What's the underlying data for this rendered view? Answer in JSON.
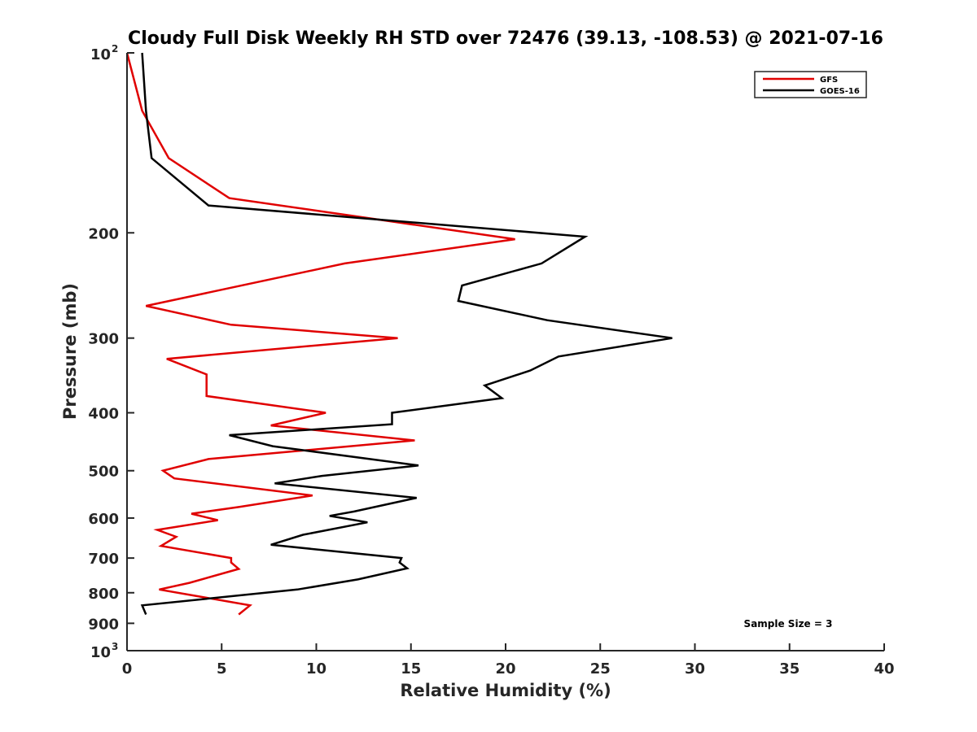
{
  "chart_data": {
    "type": "line",
    "title": "Cloudy Full Disk Weekly RH STD over 72476 (39.13, -108.53) @ 2021-07-16",
    "xlabel": "Relative Humidity (%)",
    "ylabel": "Pressure (mb)",
    "xlim": [
      0,
      40
    ],
    "ylim": [
      100,
      1000
    ],
    "y_scale": "log",
    "y_reversed": true,
    "grid": false,
    "legend_position": "top-right",
    "x_ticks": [
      "0",
      "5",
      "10",
      "15",
      "20",
      "25",
      "30",
      "35",
      "40"
    ],
    "y_ticks": [
      {
        "base": "10",
        "exp": "2",
        "value": 100
      },
      {
        "label": "200",
        "value": 200
      },
      {
        "label": "300",
        "value": 300
      },
      {
        "label": "400",
        "value": 400
      },
      {
        "label": "500",
        "value": 500
      },
      {
        "label": "600",
        "value": 600
      },
      {
        "label": "700",
        "value": 700
      },
      {
        "label": "800",
        "value": 800
      },
      {
        "label": "900",
        "value": 900
      },
      {
        "base": "10",
        "exp": "3",
        "value": 1000
      }
    ],
    "annotation": "Sample Size = 3",
    "series": [
      {
        "name": "GFS",
        "color": "#e00000",
        "points": [
          [
            0.0,
            100
          ],
          [
            0.8,
            125
          ],
          [
            2.2,
            150
          ],
          [
            5.4,
            175
          ],
          [
            20.5,
            205
          ],
          [
            11.5,
            225
          ],
          [
            1.0,
            265
          ],
          [
            5.5,
            285
          ],
          [
            14.3,
            300
          ],
          [
            2.1,
            325
          ],
          [
            4.2,
            345
          ],
          [
            4.2,
            375
          ],
          [
            10.5,
            400
          ],
          [
            7.6,
            420
          ],
          [
            15.2,
            445
          ],
          [
            4.3,
            478
          ],
          [
            1.9,
            500
          ],
          [
            2.5,
            515
          ],
          [
            9.8,
            550
          ],
          [
            5.9,
            575
          ],
          [
            3.4,
            590
          ],
          [
            4.8,
            605
          ],
          [
            1.6,
            628
          ],
          [
            2.6,
            645
          ],
          [
            1.8,
            668
          ],
          [
            5.5,
            700
          ],
          [
            5.5,
            712
          ],
          [
            5.9,
            730
          ],
          [
            3.3,
            770
          ],
          [
            1.7,
            790
          ],
          [
            6.5,
            840
          ],
          [
            5.9,
            870
          ]
        ]
      },
      {
        "name": "GOES-16",
        "color": "#000000",
        "points": [
          [
            0.8,
            100
          ],
          [
            1.0,
            125
          ],
          [
            1.3,
            150
          ],
          [
            4.3,
            180
          ],
          [
            24.2,
            203
          ],
          [
            21.9,
            225
          ],
          [
            17.7,
            245
          ],
          [
            17.5,
            260
          ],
          [
            22.2,
            280
          ],
          [
            28.8,
            300
          ],
          [
            22.8,
            322
          ],
          [
            21.3,
            340
          ],
          [
            18.9,
            360
          ],
          [
            19.8,
            378
          ],
          [
            14.0,
            400
          ],
          [
            14.0,
            418
          ],
          [
            5.4,
            436
          ],
          [
            7.7,
            455
          ],
          [
            15.4,
            490
          ],
          [
            10.3,
            510
          ],
          [
            7.8,
            525
          ],
          [
            15.3,
            555
          ],
          [
            12.0,
            585
          ],
          [
            10.7,
            595
          ],
          [
            12.7,
            610
          ],
          [
            9.3,
            640
          ],
          [
            7.6,
            665
          ],
          [
            14.5,
            700
          ],
          [
            14.4,
            712
          ],
          [
            14.8,
            728
          ],
          [
            12.2,
            760
          ],
          [
            9.0,
            790
          ],
          [
            0.8,
            840
          ],
          [
            1.0,
            870
          ]
        ]
      }
    ]
  }
}
